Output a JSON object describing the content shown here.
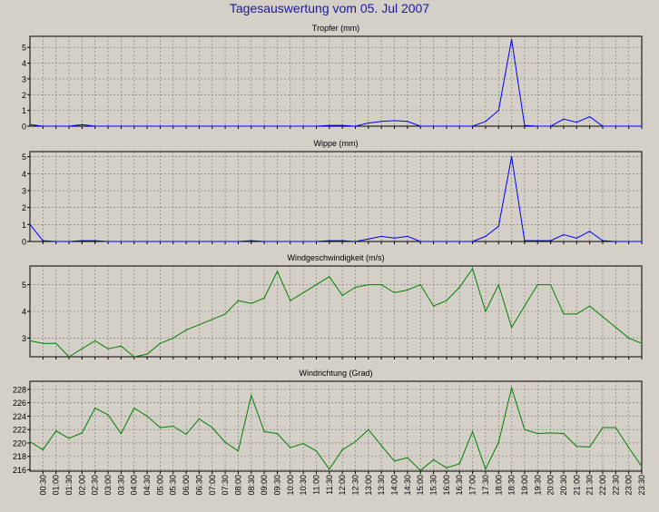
{
  "title": "Tagesauswertung vom 05. Jul 2007",
  "x_tick_labels": [
    "00:30",
    "01:00",
    "01:30",
    "02:00",
    "02:30",
    "03:00",
    "03:30",
    "04:00",
    "04:30",
    "05:00",
    "05:30",
    "06:00",
    "06:30",
    "07:00",
    "07:30",
    "08:00",
    "08:30",
    "09:00",
    "09:30",
    "10:00",
    "10:30",
    "11:00",
    "11:30",
    "12:00",
    "12:30",
    "13:00",
    "13:30",
    "14:00",
    "14:30",
    "15:00",
    "15:30",
    "16:00",
    "16:30",
    "17:00",
    "17:30",
    "18:00",
    "18:30",
    "19:00",
    "19:30",
    "20:00",
    "20:30",
    "21:00",
    "21:30",
    "22:00",
    "22:30",
    "23:00",
    "23:30"
  ],
  "colors": {
    "blue_series": "#0000ff",
    "green_series": "#008000",
    "grid": "#777777"
  },
  "chart_data": [
    {
      "type": "line",
      "title": "Tropfer (mm)",
      "x": [
        "00:00",
        "00:30",
        "01:00",
        "01:30",
        "02:00",
        "02:30",
        "03:00",
        "03:30",
        "04:00",
        "04:30",
        "05:00",
        "05:30",
        "06:00",
        "06:30",
        "07:00",
        "07:30",
        "08:00",
        "08:30",
        "09:00",
        "09:30",
        "10:00",
        "10:30",
        "11:00",
        "11:30",
        "12:00",
        "12:30",
        "13:00",
        "13:30",
        "14:00",
        "14:30",
        "15:00",
        "15:30",
        "16:00",
        "16:30",
        "17:00",
        "17:30",
        "18:00",
        "18:30",
        "19:00",
        "19:30",
        "20:00",
        "20:30",
        "21:00",
        "21:30",
        "22:00",
        "22:30",
        "23:00",
        "23:30"
      ],
      "values": [
        0.1,
        0,
        0,
        0,
        0.1,
        0,
        0,
        0,
        0,
        0,
        0,
        0,
        0,
        0,
        0,
        0,
        0,
        0,
        0,
        0,
        0,
        0,
        0,
        0.05,
        0.05,
        0,
        0.2,
        0.3,
        0.35,
        0.3,
        0,
        0,
        0,
        0,
        0,
        0.3,
        1.0,
        5.5,
        0.05,
        0,
        0,
        0.45,
        0.25,
        0.6,
        0,
        0,
        0,
        0
      ],
      "ylim": [
        0,
        5.7
      ],
      "yticks": [
        0,
        1,
        2,
        3,
        4,
        5
      ],
      "grid": true,
      "color": "#0000ff"
    },
    {
      "type": "line",
      "title": "Wippe (mm)",
      "x": [
        "00:00",
        "00:30",
        "01:00",
        "01:30",
        "02:00",
        "02:30",
        "03:00",
        "03:30",
        "04:00",
        "04:30",
        "05:00",
        "05:30",
        "06:00",
        "06:30",
        "07:00",
        "07:30",
        "08:00",
        "08:30",
        "09:00",
        "09:30",
        "10:00",
        "10:30",
        "11:00",
        "11:30",
        "12:00",
        "12:30",
        "13:00",
        "13:30",
        "14:00",
        "14:30",
        "15:00",
        "15:30",
        "16:00",
        "16:30",
        "17:00",
        "17:30",
        "18:00",
        "18:30",
        "19:00",
        "19:30",
        "20:00",
        "20:30",
        "21:00",
        "21:30",
        "22:00",
        "22:30",
        "23:00",
        "23:30"
      ],
      "values": [
        1.0,
        0.05,
        0,
        0,
        0.05,
        0.05,
        0,
        0,
        0,
        0,
        0,
        0,
        0,
        0,
        0,
        0,
        0,
        0.05,
        0,
        0,
        0,
        0,
        0,
        0.05,
        0.05,
        0,
        0.15,
        0.3,
        0.2,
        0.3,
        0,
        0,
        0,
        0,
        0,
        0.3,
        0.9,
        5.0,
        0.05,
        0.05,
        0.05,
        0.4,
        0.2,
        0.6,
        0.05,
        0,
        0,
        0
      ],
      "ylim": [
        0,
        5.3
      ],
      "yticks": [
        0,
        1,
        2,
        3,
        4,
        5
      ],
      "grid": true,
      "color": "#0000ff"
    },
    {
      "type": "line",
      "title": "Windgeschwindigkeit (m/s)",
      "x": [
        "00:00",
        "00:30",
        "01:00",
        "01:30",
        "02:00",
        "02:30",
        "03:00",
        "03:30",
        "04:00",
        "04:30",
        "05:00",
        "05:30",
        "06:00",
        "06:30",
        "07:00",
        "07:30",
        "08:00",
        "08:30",
        "09:00",
        "09:30",
        "10:00",
        "10:30",
        "11:00",
        "11:30",
        "12:00",
        "12:30",
        "13:00",
        "13:30",
        "14:00",
        "14:30",
        "15:00",
        "15:30",
        "16:00",
        "16:30",
        "17:00",
        "17:30",
        "18:00",
        "18:30",
        "19:00",
        "19:30",
        "20:00",
        "20:30",
        "21:00",
        "21:30",
        "22:00",
        "22:30",
        "23:00",
        "23:30"
      ],
      "values": [
        2.9,
        2.8,
        2.8,
        2.3,
        2.6,
        2.9,
        2.6,
        2.7,
        2.3,
        2.4,
        2.8,
        3.0,
        3.3,
        3.5,
        3.7,
        3.9,
        4.4,
        4.3,
        4.5,
        5.5,
        4.4,
        4.7,
        5.0,
        5.3,
        4.6,
        4.9,
        5.0,
        5.0,
        4.7,
        4.8,
        5.0,
        4.2,
        4.4,
        4.9,
        5.6,
        4.0,
        5.0,
        3.4,
        4.2,
        5.0,
        5.0,
        3.9,
        3.9,
        4.2,
        3.8,
        3.4,
        3.0,
        2.8
      ],
      "ylim": [
        2.3,
        5.7
      ],
      "yticks": [
        3,
        4,
        5
      ],
      "grid": true,
      "color": "#008000"
    },
    {
      "type": "line",
      "title": "Windrichtung (Grad)",
      "x": [
        "00:00",
        "00:30",
        "01:00",
        "01:30",
        "02:00",
        "02:30",
        "03:00",
        "03:30",
        "04:00",
        "04:30",
        "05:00",
        "05:30",
        "06:00",
        "06:30",
        "07:00",
        "07:30",
        "08:00",
        "08:30",
        "09:00",
        "09:30",
        "10:00",
        "10:30",
        "11:00",
        "11:30",
        "12:00",
        "12:30",
        "13:00",
        "13:30",
        "14:00",
        "14:30",
        "15:00",
        "15:30",
        "16:00",
        "16:30",
        "17:00",
        "17:30",
        "18:00",
        "18:30",
        "19:00",
        "19:30",
        "20:00",
        "20:30",
        "21:00",
        "21:30",
        "22:00",
        "22:30",
        "23:00",
        "23:30"
      ],
      "values": [
        220.2,
        219.0,
        221.8,
        220.7,
        221.5,
        225.2,
        224.2,
        221.4,
        225.2,
        224.0,
        222.3,
        222.5,
        221.3,
        223.6,
        222.3,
        220.1,
        218.8,
        227.1,
        221.7,
        221.4,
        219.3,
        219.9,
        218.8,
        216.1,
        219.0,
        220.2,
        222.0,
        219.6,
        217.3,
        217.8,
        215.9,
        217.5,
        216.3,
        216.9,
        221.7,
        216.1,
        220.1,
        228.2,
        222.0,
        221.4,
        221.5,
        221.4,
        219.5,
        219.4,
        222.3,
        222.3,
        219.3,
        216.5
      ],
      "ylim": [
        215.8,
        229.2
      ],
      "yticks": [
        216,
        218,
        220,
        222,
        224,
        226,
        228
      ],
      "grid": true,
      "color": "#008000"
    }
  ]
}
